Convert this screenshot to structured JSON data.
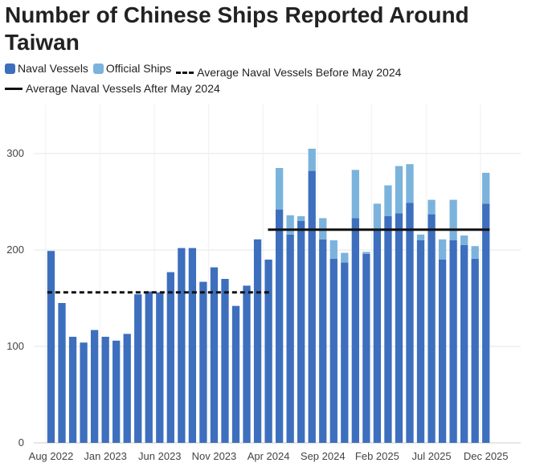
{
  "chart_data": {
    "type": "bar",
    "stacked": true,
    "title": "Number of Chinese Ships Reported Around Taiwan",
    "xlabel": "",
    "ylabel": "",
    "ylim": [
      0,
      330
    ],
    "yticks": [
      0,
      100,
      200,
      300
    ],
    "grid": true,
    "legend": [
      {
        "name": "Naval Vessels",
        "kind": "bar",
        "color": "#3d6fbe"
      },
      {
        "name": "Official Ships",
        "kind": "bar",
        "color": "#7bb3dc"
      },
      {
        "name": "Average Naval Vessels Before May 2024",
        "kind": "dashed-line",
        "color": "#111111"
      },
      {
        "name": "Average Naval Vessels After May 2024",
        "kind": "solid-line",
        "color": "#111111"
      }
    ],
    "categories": [
      "Aug 2022",
      "Sep 2022",
      "Oct 2022",
      "Nov 2022",
      "Dec 2022",
      "Jan 2023",
      "Feb 2023",
      "Mar 2023",
      "Apr 2023",
      "May 2023",
      "Jun 2023",
      "Jul 2023",
      "Aug 2023",
      "Sep 2023",
      "Oct 2023",
      "Nov 2023",
      "Dec 2023",
      "Jan 2024",
      "Feb 2024",
      "Mar 2024",
      "Apr 2024",
      "May 2024",
      "Jun 2024",
      "Jul 2024",
      "Aug 2024",
      "Sep 2024",
      "Oct 2024",
      "Nov 2024",
      "Dec 2024",
      "Jan 2025",
      "Feb 2025",
      "Mar 2025",
      "Apr 2025",
      "May 2025",
      "Jun 2025",
      "Jul 2025",
      "Aug 2025",
      "Sep 2025",
      "Oct 2025",
      "Nov 2025",
      "Dec 2025"
    ],
    "tick_labels": [
      "Aug 2022",
      "Jan 2023",
      "Jun 2023",
      "Nov 2023",
      "Apr 2024",
      "Sep 2024",
      "Feb 2025",
      "Jul 2025",
      "Dec 2025"
    ],
    "series": [
      {
        "name": "Naval Vessels",
        "color": "#3d6fbe",
        "values": [
          199,
          145,
          110,
          104,
          117,
          110,
          106,
          113,
          154,
          157,
          156,
          177,
          202,
          202,
          167,
          182,
          170,
          142,
          163,
          211,
          190,
          242,
          216,
          230,
          282,
          211,
          191,
          187,
          233,
          196,
          220,
          235,
          238,
          249,
          210,
          237,
          190,
          210,
          205,
          191,
          248
        ]
      },
      {
        "name": "Official Ships",
        "color": "#7bb3dc",
        "values": [
          0,
          0,
          0,
          0,
          0,
          0,
          0,
          0,
          0,
          0,
          0,
          0,
          0,
          0,
          0,
          0,
          0,
          0,
          0,
          0,
          0,
          43,
          20,
          5,
          23,
          22,
          19,
          10,
          50,
          2,
          28,
          32,
          49,
          40,
          6,
          15,
          21,
          42,
          10,
          13,
          32
        ]
      }
    ],
    "reference_lines": [
      {
        "name": "Average Naval Vessels Before May 2024",
        "value": 156,
        "from": "Aug 2022",
        "to": "Apr 2024",
        "style": "dashed"
      },
      {
        "name": "Average Naval Vessels After May 2024",
        "value": 221,
        "from": "Apr 2024",
        "to": "Dec 2025",
        "style": "solid"
      }
    ]
  }
}
